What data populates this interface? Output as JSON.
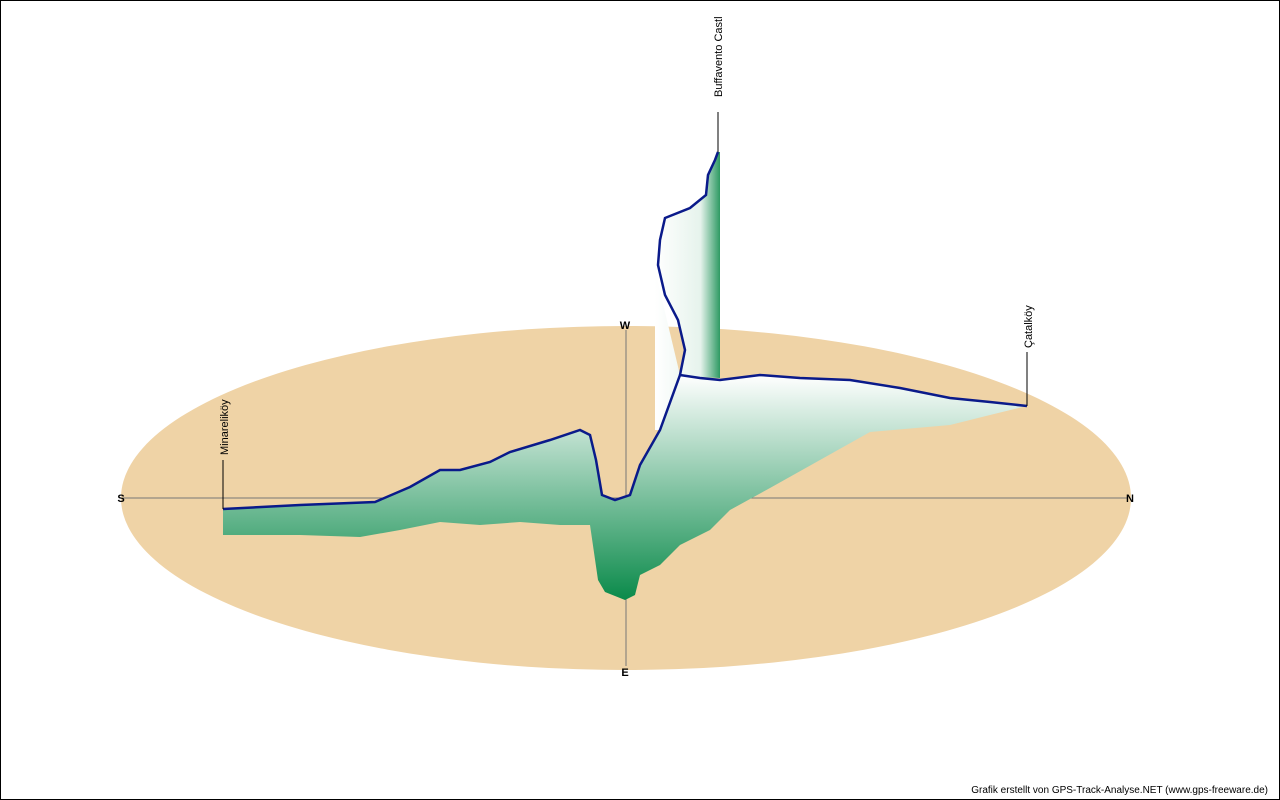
{
  "compass": {
    "south": "S",
    "north": "N",
    "west": "W",
    "east": "E"
  },
  "waypoints": [
    {
      "label": "Minareliköy"
    },
    {
      "label": "Buffavento Castl"
    },
    {
      "label": "Çatalköy"
    }
  ],
  "credit": "Grafik erstellt von GPS-Track-Analyse.NET (www.gps-freeware.de)"
}
